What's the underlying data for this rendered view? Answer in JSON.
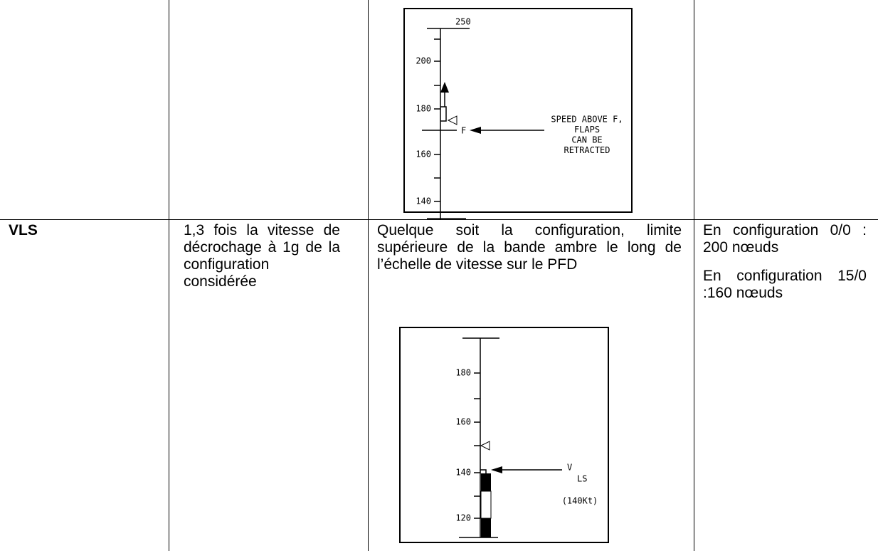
{
  "figures": [
    {
      "scale_labels": [
        "250",
        "200",
        "180",
        "160",
        "140"
      ],
      "marker": "F",
      "callout": [
        "SPEED ABOVE F,",
        "FLAPS",
        "CAN BE",
        "RETRACTED"
      ]
    },
    {
      "scale_labels": [
        "180",
        "160",
        "140",
        "120"
      ],
      "callout": "V",
      "callout_sub": "LS",
      "note": "(140Kt)"
    }
  ],
  "table": {
    "rows": [
      {
        "speed": "VLS",
        "definition": "1,3 fois la vitesse de décrochage à 1g de la configuration considérée",
        "description": "Quelque soit la configuration, limite supérieure de la bande ambre le long de l’échelle de vitesse sur le PFD",
        "values": [
          "En configuration 0/0 : 200 nœuds",
          "En configuration 15/0 :160 nœuds"
        ]
      }
    ]
  }
}
